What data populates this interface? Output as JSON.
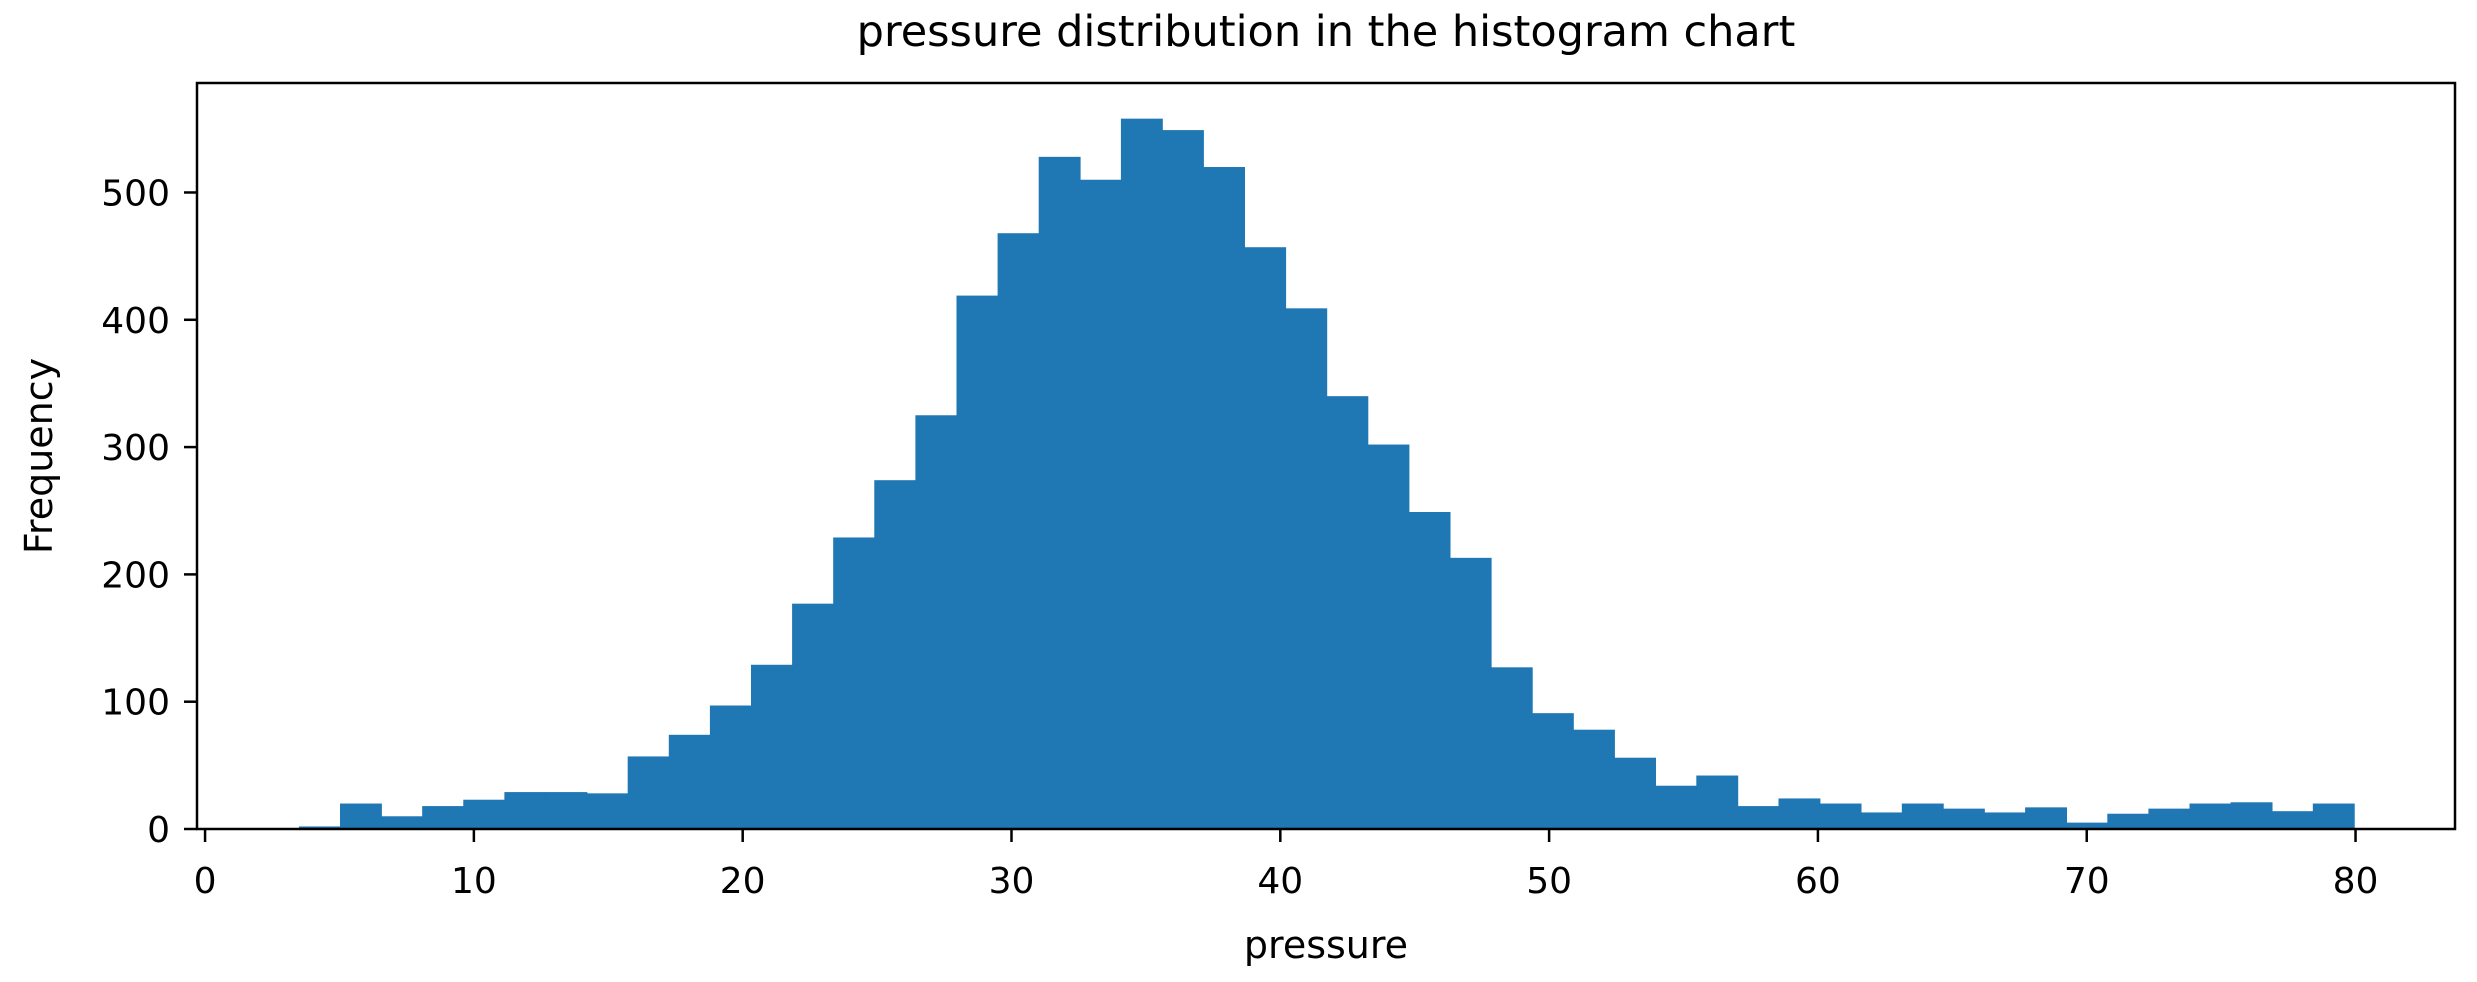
{
  "chart_data": {
    "type": "bar",
    "subtype": "histogram",
    "title": "pressure distribution in the histogram chart",
    "xlabel": "pressure",
    "ylabel": "Frequency",
    "bar_color": "#1f77b4",
    "axis_color": "#000000",
    "background_color": "#ffffff",
    "grid": false,
    "legend": "none",
    "bins": 50,
    "bin_start": 3.49,
    "bin_width": 1.529,
    "frequencies": [
      2,
      20,
      10,
      18,
      23,
      29,
      29,
      28,
      57,
      74,
      97,
      129,
      177,
      229,
      274,
      325,
      419,
      468,
      528,
      510,
      558,
      549,
      520,
      457,
      409,
      340,
      302,
      249,
      213,
      127,
      91,
      78,
      56,
      34,
      42,
      18,
      24,
      20,
      13,
      20,
      16,
      13,
      17,
      5,
      12,
      16,
      20,
      21,
      14,
      20
    ],
    "x_ticks": [
      0,
      10,
      20,
      30,
      40,
      50,
      60,
      70,
      80
    ],
    "y_ticks": [
      0,
      100,
      200,
      300,
      400,
      500
    ],
    "xlim": [
      -0.3,
      83.7
    ],
    "ylim": [
      0,
      586
    ]
  }
}
